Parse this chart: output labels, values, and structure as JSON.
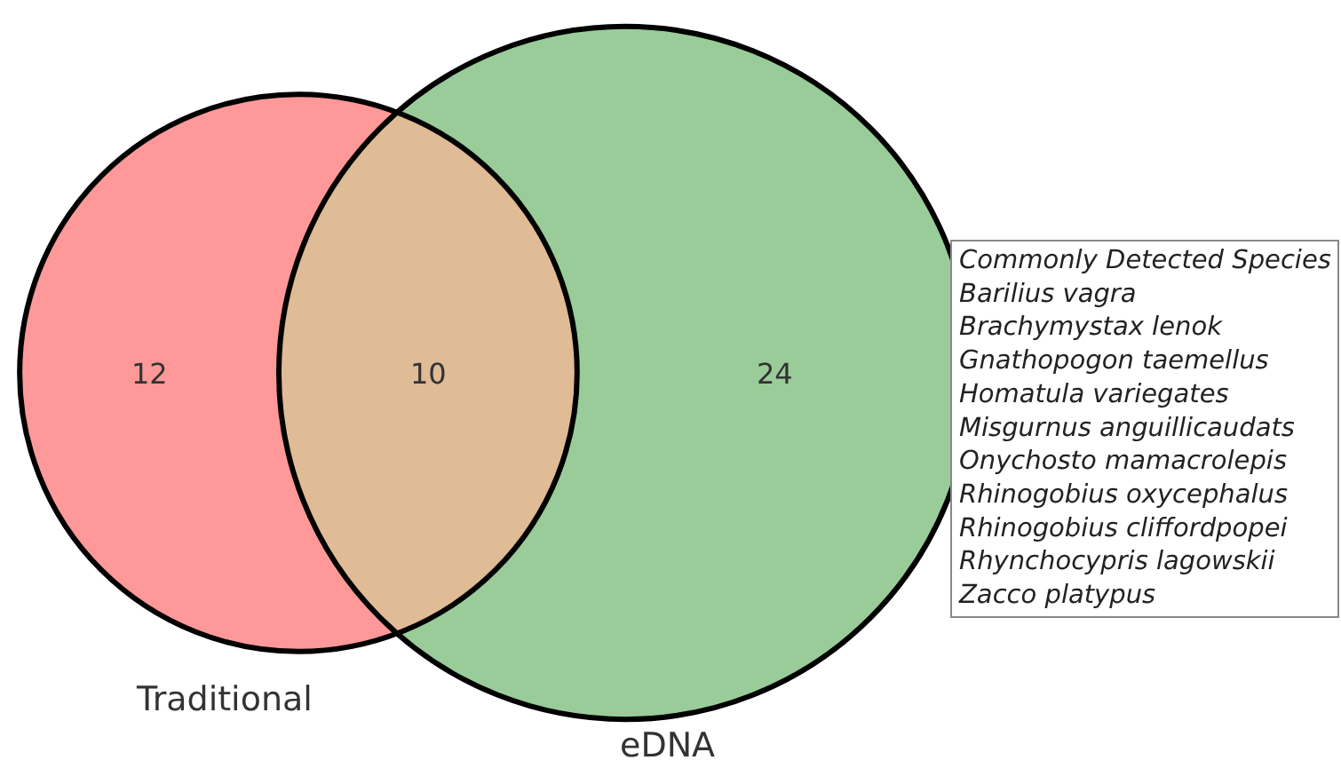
{
  "chart_data": {
    "type": "other",
    "categories": [
      "Traditional",
      null,
      "eDNA"
    ],
    "values": [
      12,
      10,
      24
    ],
    "colors": [
      "#ff9999",
      "#dfbb96",
      "#99cc99"
    ],
    "data_labels": true,
    "annotations": [
      "Commonly Detected Species\nBarilius vagra\nBrachymystax lenok\nGnathopogon taemellus\nHomatula variegates\nMisgurnus anguillicaudats\nOnychosto mamacrolepis\nRhinogobius oxycephalus\nRhinogobius cliffordpopei\nRhynchocypris lagowskii\nZacco platypus"
    ]
  }
}
